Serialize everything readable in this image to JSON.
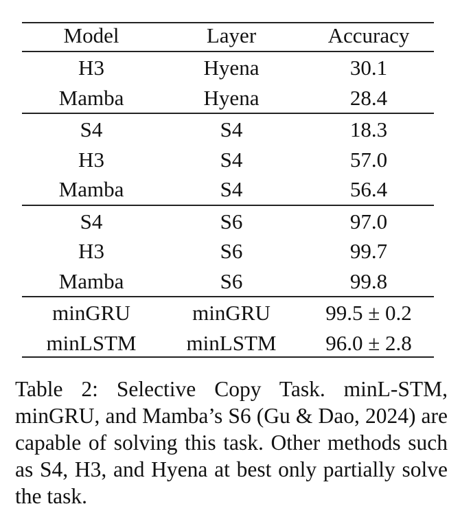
{
  "table": {
    "headers": [
      "Model",
      "Layer",
      "Accuracy"
    ],
    "groups": [
      [
        [
          "H3",
          "Hyena",
          "30.1"
        ],
        [
          "Mamba",
          "Hyena",
          "28.4"
        ]
      ],
      [
        [
          "S4",
          "S4",
          "18.3"
        ],
        [
          "H3",
          "S4",
          "57.0"
        ],
        [
          "Mamba",
          "S4",
          "56.4"
        ]
      ],
      [
        [
          "S4",
          "S6",
          "97.0"
        ],
        [
          "H3",
          "S6",
          "99.7"
        ],
        [
          "Mamba",
          "S6",
          "99.8"
        ]
      ],
      [
        [
          "minGRU",
          "minGRU",
          "99.5 ± 0.2"
        ],
        [
          "minLSTM",
          "minLSTM",
          "96.0 ± 2.8"
        ]
      ]
    ]
  },
  "caption": "Table 2: Selective Copy Task. minL-STM, minGRU, and Mamba’s S6 (Gu & Dao, 2024) are capable of solving this task. Other methods such as S4, H3, and Hyena at best only partially solve the task."
}
